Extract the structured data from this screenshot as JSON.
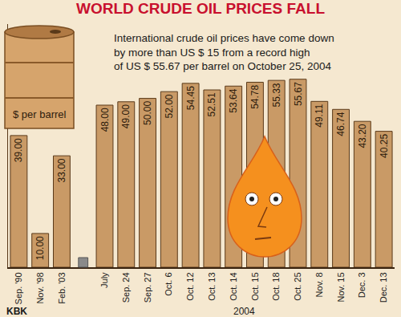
{
  "chart_data": {
    "type": "bar",
    "title": "WORLD CRUDE OIL PRICES FALL",
    "categories": [
      "Sep. '90",
      "Nov. '98",
      "Feb. '03",
      null,
      "July",
      "Sep. 24",
      "Sep. 27",
      "Oct. 6",
      "Oct. 12",
      "Oct. 13",
      "Oct. 14",
      "Oct. 15",
      "Oct. 18",
      "Oct. 25",
      "Nov. 8",
      "Nov. 15",
      "Dec. 3",
      "Dec. 13"
    ],
    "values": [
      39.0,
      10.0,
      33.0,
      null,
      48.0,
      49.0,
      50.0,
      52.0,
      54.45,
      52.51,
      53.64,
      54.78,
      55.33,
      55.67,
      49.11,
      46.74,
      43.2,
      40.25
    ],
    "value_labels": [
      "39.00",
      "10.00",
      "33.00",
      null,
      "48.00",
      "49.00",
      "50.00",
      "52.00",
      "54.45",
      "52.51",
      "53.64",
      "54.78",
      "55.33",
      "55.67",
      "49.11",
      "46.74",
      "43.20",
      "40.25"
    ],
    "color": "#c99a66",
    "data_labels": true,
    "ylim": [
      0,
      72
    ],
    "tick_labels": "x",
    "grid": false,
    "annotations": [
      {
        "text": "International crude oil prices have come down\nby more than US $ 15 from a record high\nof US $ 55.67 per barrel on October 25, 2004"
      },
      {
        "text": "$ per barrel"
      },
      {
        "text": "KBK"
      },
      {
        "text": "2004"
      }
    ]
  }
}
